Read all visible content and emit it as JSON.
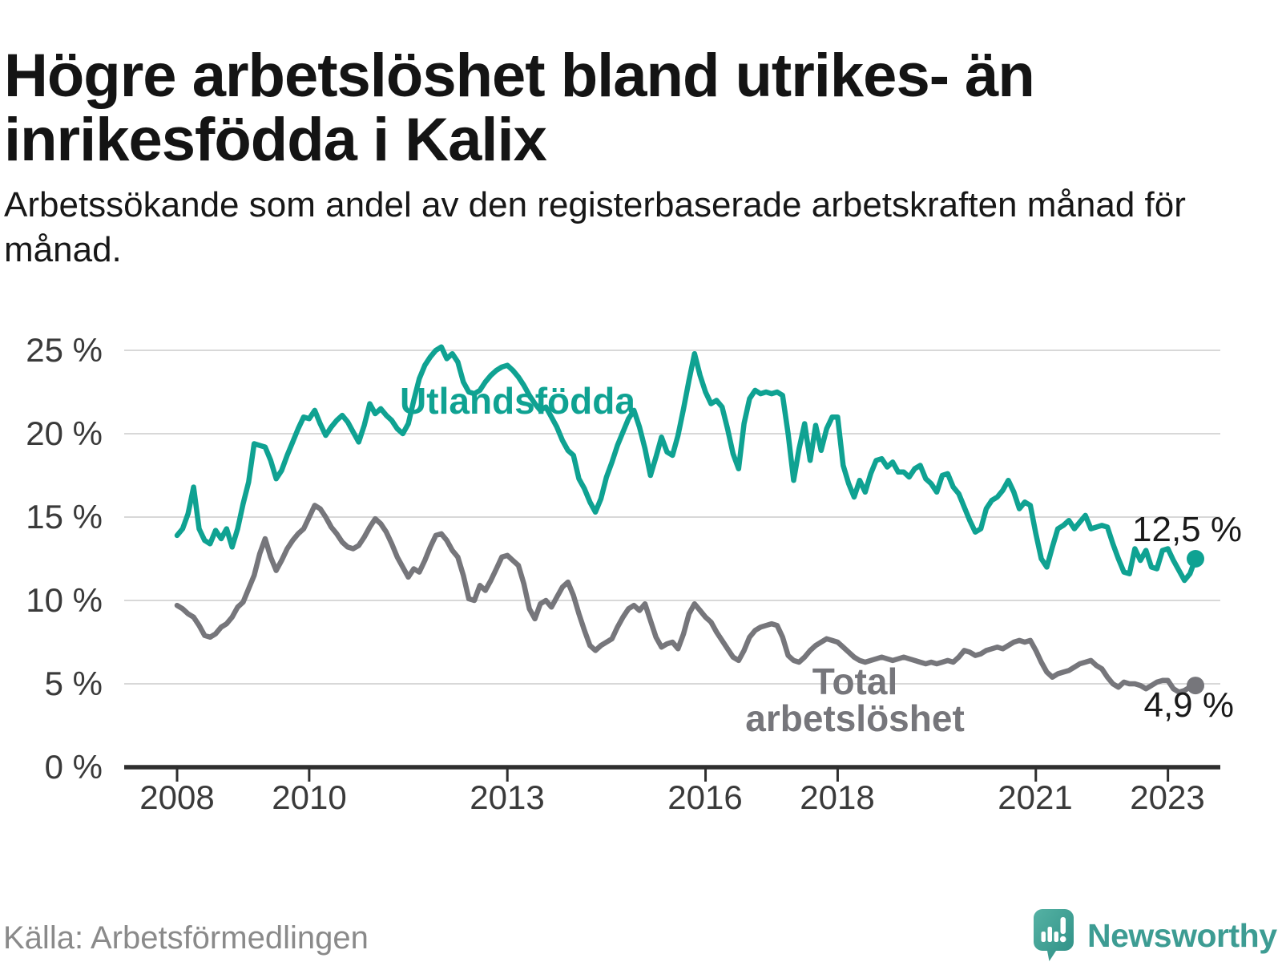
{
  "header": {
    "title": "Högre arbetslöshet bland utrikes- än inrikesfödda i Kalix",
    "subtitle": "Arbetssökande som andel av den registerbaserade arbetskraften månad för månad."
  },
  "chart_data": {
    "type": "line",
    "unit": "%",
    "grid": true,
    "x_range": [
      "2008-01",
      "2023-06"
    ],
    "ylim": [
      0,
      26
    ],
    "x_tick_years": [
      2008,
      2010,
      2013,
      2016,
      2018,
      2021,
      2023
    ],
    "x_tick_labels": [
      "2008",
      "2010",
      "2013",
      "2016",
      "2018",
      "2021",
      "2023"
    ],
    "y_tick_labels": [
      "0 %",
      "5 %",
      "10 %",
      "15 %",
      "20 %",
      "25 %"
    ],
    "series": [
      {
        "name": "Utlandsfödda",
        "color": "#0fa292",
        "end_label": "12,5 %",
        "last_value": 12.5,
        "values": [
          13.9,
          14.3,
          15.2,
          16.8,
          14.3,
          13.6,
          13.4,
          14.2,
          13.7,
          14.3,
          13.2,
          14.3,
          15.8,
          17.1,
          19.4,
          19.3,
          19.2,
          18.4,
          17.3,
          17.8,
          18.7,
          19.5,
          20.3,
          21.0,
          20.9,
          21.4,
          20.6,
          19.9,
          20.4,
          20.8,
          21.1,
          20.7,
          20.1,
          19.5,
          20.5,
          21.8,
          21.2,
          21.5,
          21.1,
          20.8,
          20.3,
          20.0,
          20.6,
          22.0,
          23.3,
          24.1,
          24.6,
          25.0,
          25.2,
          24.5,
          24.8,
          24.3,
          23.1,
          22.5,
          22.4,
          22.6,
          23.1,
          23.5,
          23.8,
          24.0,
          24.1,
          23.8,
          23.4,
          22.9,
          22.3,
          21.8,
          21.4,
          21.6,
          21.0,
          20.4,
          19.6,
          19.0,
          18.7,
          17.3,
          16.7,
          15.9,
          15.3,
          16.1,
          17.4,
          18.3,
          19.3,
          20.1,
          20.9,
          21.4,
          20.4,
          19.1,
          17.5,
          18.6,
          19.8,
          18.9,
          18.7,
          19.9,
          21.5,
          23.2,
          24.8,
          23.5,
          22.5,
          21.8,
          22.0,
          21.6,
          20.3,
          18.8,
          17.9,
          20.6,
          22.1,
          22.6,
          22.4,
          22.5,
          22.4,
          22.5,
          22.3,
          20.0,
          17.2,
          19.1,
          20.6,
          18.4,
          20.5,
          19.0,
          20.3,
          21.0,
          21.0,
          18.1,
          17.0,
          16.2,
          17.2,
          16.5,
          17.6,
          18.4,
          18.5,
          18.0,
          18.3,
          17.7,
          17.7,
          17.4,
          17.9,
          18.1,
          17.3,
          17.0,
          16.5,
          17.5,
          17.6,
          16.8,
          16.4,
          15.6,
          14.8,
          14.1,
          14.3,
          15.5,
          16.0,
          16.2,
          16.6,
          17.2,
          16.5,
          15.5,
          15.9,
          15.7,
          14.0,
          12.5,
          12.0,
          13.2,
          14.3,
          14.5,
          14.8,
          14.3,
          14.7,
          15.1,
          14.3,
          14.4,
          14.5,
          14.4,
          13.4,
          12.5,
          11.7,
          11.6,
          13.1,
          12.4,
          13.0,
          12.0,
          11.9,
          13.0,
          13.1,
          12.4,
          11.8,
          11.2,
          11.6,
          12.5
        ]
      },
      {
        "name": "Total arbetslöshet",
        "color": "#76767b",
        "end_label": "4,9 %",
        "last_value": 4.9,
        "values": [
          9.7,
          9.5,
          9.2,
          9.0,
          8.5,
          7.9,
          7.8,
          8.0,
          8.4,
          8.6,
          9.0,
          9.6,
          9.9,
          10.7,
          11.5,
          12.8,
          13.7,
          12.6,
          11.8,
          12.4,
          13.1,
          13.6,
          14.0,
          14.3,
          15.0,
          15.7,
          15.5,
          15.0,
          14.4,
          14.0,
          13.5,
          13.2,
          13.1,
          13.3,
          13.8,
          14.4,
          14.9,
          14.6,
          14.1,
          13.4,
          12.6,
          12.0,
          11.4,
          11.9,
          11.7,
          12.4,
          13.2,
          13.9,
          14.0,
          13.6,
          13.0,
          12.6,
          11.5,
          10.1,
          10.0,
          10.9,
          10.6,
          11.2,
          11.9,
          12.6,
          12.7,
          12.4,
          12.1,
          11.0,
          9.5,
          8.9,
          9.8,
          10.0,
          9.6,
          10.2,
          10.8,
          11.1,
          10.3,
          9.2,
          8.2,
          7.3,
          7.0,
          7.3,
          7.5,
          7.7,
          8.4,
          9.0,
          9.5,
          9.7,
          9.4,
          9.8,
          8.8,
          7.8,
          7.2,
          7.4,
          7.5,
          7.1,
          8.0,
          9.2,
          9.8,
          9.4,
          9.0,
          8.7,
          8.1,
          7.6,
          7.1,
          6.6,
          6.4,
          7.0,
          7.8,
          8.2,
          8.4,
          8.5,
          8.6,
          8.5,
          7.8,
          6.7,
          6.4,
          6.3,
          6.6,
          7.0,
          7.3,
          7.5,
          7.7,
          7.6,
          7.5,
          7.2,
          6.9,
          6.6,
          6.4,
          6.3,
          6.4,
          6.5,
          6.6,
          6.5,
          6.4,
          6.5,
          6.6,
          6.5,
          6.4,
          6.3,
          6.2,
          6.3,
          6.2,
          6.3,
          6.4,
          6.3,
          6.6,
          7.0,
          6.9,
          6.7,
          6.8,
          7.0,
          7.1,
          7.2,
          7.1,
          7.3,
          7.5,
          7.6,
          7.5,
          7.6,
          7.0,
          6.3,
          5.7,
          5.4,
          5.6,
          5.7,
          5.8,
          6.0,
          6.2,
          6.3,
          6.4,
          6.1,
          5.9,
          5.4,
          5.0,
          4.8,
          5.1,
          5.0,
          5.0,
          4.9,
          4.7,
          4.9,
          5.1,
          5.2,
          5.2,
          4.7,
          4.5,
          4.6,
          4.8,
          4.9
        ]
      }
    ]
  },
  "footer": {
    "source": "Källa: Arbetsförmedlingen",
    "logo_text": "Newsworthy"
  },
  "colors": {
    "accent_teal": "#0fa292",
    "neutral_gray": "#76767b",
    "gridline": "#d8d8d8",
    "axis": "#2e2e2e"
  }
}
